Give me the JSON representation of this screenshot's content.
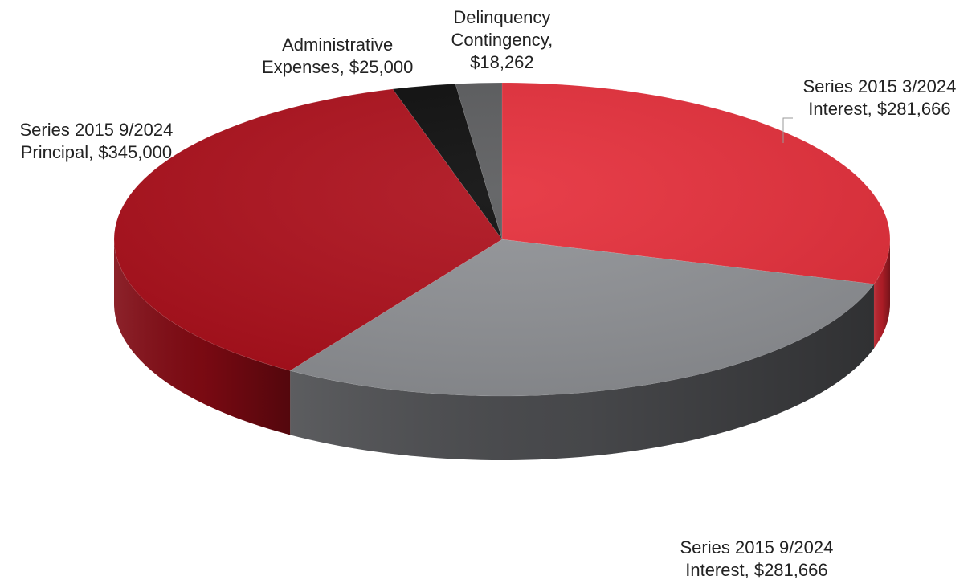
{
  "chart_data": {
    "type": "pie",
    "style": "3d",
    "start_angle_deg": 0,
    "direction": "clockwise",
    "slices": [
      {
        "name": "Series 2015 3/2024 Interest",
        "value": 281666,
        "value_label": "$281,666",
        "label_lines": [
          "Series 2015 3/2024",
          "Interest, $281,666"
        ],
        "color": "#e52e3a",
        "side_color": "#b51e28"
      },
      {
        "name": "Series 2015 9/2024 Interest",
        "value": 281666,
        "value_label": "$281,666",
        "label_lines": [
          "Series 2015 9/2024",
          "Interest, $281,666"
        ],
        "color": "#8f9195",
        "side_color": "#4a4b4e"
      },
      {
        "name": "Series 2015 9/2024 Principal",
        "value": 345000,
        "value_label": "$345,000",
        "label_lines": [
          "Series 2015 9/2024",
          "Principal, $345,000"
        ],
        "color": "#ad0f1b",
        "side_color": "#800a13"
      },
      {
        "name": "Administrative Expenses",
        "value": 25000,
        "value_label": "$25,000",
        "label_lines": [
          "Administrative",
          "Expenses, $25,000"
        ],
        "color": "#0b0b0b",
        "side_color": "#000000"
      },
      {
        "name": "Delinquency Contingency",
        "value": 18262,
        "value_label": "$18,262",
        "label_lines": [
          "Delinquency",
          "Contingency,",
          "$18,262"
        ],
        "color": "#5a5b5d",
        "side_color": "#3a3b3c"
      }
    ]
  }
}
